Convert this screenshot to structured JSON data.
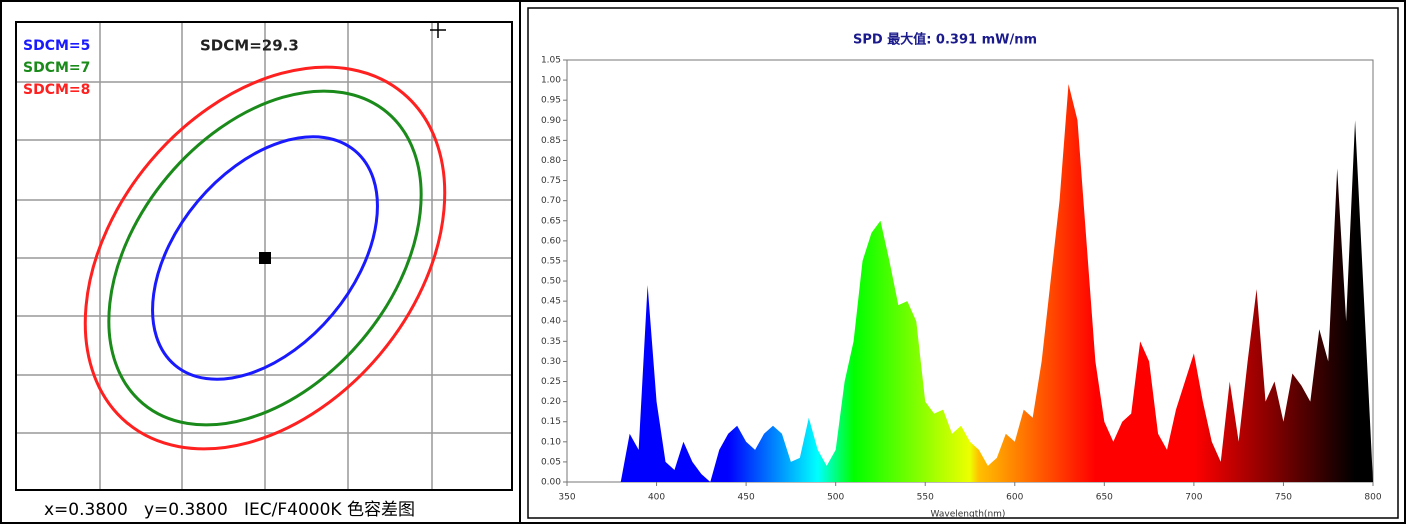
{
  "chart_data": [
    {
      "type": "ellipse",
      "annotation": "SDCM=29.3",
      "caption": "x=0.3800   y=0.3800   IEC/F4000K 色容差图",
      "series": [
        {
          "name": "SDCM=5",
          "color": "#1a1aff"
        },
        {
          "name": "SDCM=7",
          "color": "#1a8a1a"
        },
        {
          "name": "SDCM=8",
          "color": "#ff2020"
        }
      ]
    },
    {
      "type": "spectrum",
      "title": "SPD 最大值: 0.391 mW/nm",
      "xlabel": "Wavelength(nm)",
      "x": [
        350,
        355,
        360,
        365,
        370,
        375,
        380,
        385,
        390,
        395,
        400,
        405,
        410,
        415,
        420,
        425,
        430,
        435,
        440,
        445,
        450,
        455,
        460,
        465,
        470,
        475,
        480,
        485,
        490,
        495,
        500,
        505,
        510,
        515,
        520,
        525,
        530,
        535,
        540,
        545,
        550,
        555,
        560,
        565,
        570,
        575,
        580,
        585,
        590,
        595,
        600,
        605,
        610,
        615,
        620,
        625,
        630,
        635,
        640,
        645,
        650,
        655,
        660,
        665,
        670,
        675,
        680,
        685,
        690,
        695,
        700,
        705,
        710,
        715,
        720,
        725,
        730,
        735,
        740,
        745,
        750,
        755,
        760,
        765,
        770,
        775,
        780,
        785,
        790,
        795,
        800
      ],
      "values": [
        0,
        0,
        0,
        0,
        0,
        0,
        0,
        0.12,
        0.08,
        0.49,
        0.2,
        0.05,
        0.03,
        0.1,
        0.05,
        0.02,
        0,
        0.08,
        0.12,
        0.14,
        0.1,
        0.08,
        0.12,
        0.14,
        0.12,
        0.05,
        0.06,
        0.16,
        0.08,
        0.04,
        0.08,
        0.25,
        0.35,
        0.55,
        0.62,
        0.65,
        0.55,
        0.44,
        0.45,
        0.4,
        0.2,
        0.17,
        0.18,
        0.12,
        0.14,
        0.1,
        0.08,
        0.04,
        0.06,
        0.12,
        0.1,
        0.18,
        0.16,
        0.3,
        0.5,
        0.7,
        0.99,
        0.9,
        0.6,
        0.3,
        0.15,
        0.1,
        0.15,
        0.17,
        0.35,
        0.3,
        0.12,
        0.08,
        0.18,
        0.25,
        0.32,
        0.2,
        0.1,
        0.05,
        0.25,
        0.1,
        0.3,
        0.48,
        0.2,
        0.25,
        0.15,
        0.27,
        0.24,
        0.2,
        0.38,
        0.3,
        0.78,
        0.4,
        0.9,
        0.45,
        0
      ],
      "xlim": [
        350,
        800
      ],
      "ylim": [
        0,
        1.05
      ],
      "xticks": [
        350,
        400,
        450,
        500,
        550,
        600,
        650,
        700,
        750,
        800
      ],
      "yticks": [
        {
          "value": 0,
          "label": "0.00"
        },
        {
          "value": 0.05,
          "label": "0.05"
        },
        {
          "value": 0.1,
          "label": "0.10"
        },
        {
          "value": 0.15,
          "label": "0.15"
        },
        {
          "value": 0.2,
          "label": "0.20"
        },
        {
          "value": 0.25,
          "label": "0.25"
        },
        {
          "value": 0.3,
          "label": "0.30"
        },
        {
          "value": 0.35,
          "label": "0.35"
        },
        {
          "value": 0.4,
          "label": "0.40"
        },
        {
          "value": 0.45,
          "label": "0.45"
        },
        {
          "value": 0.5,
          "label": "0.50"
        },
        {
          "value": 0.55,
          "label": "0.55"
        },
        {
          "value": 0.6,
          "label": "0.60"
        },
        {
          "value": 0.65,
          "label": "0.65"
        },
        {
          "value": 0.7,
          "label": "0.70"
        },
        {
          "value": 0.75,
          "label": "0.75"
        },
        {
          "value": 0.8,
          "label": "0.80"
        },
        {
          "value": 0.85,
          "label": "0.85"
        },
        {
          "value": 0.9,
          "label": "0.90"
        },
        {
          "value": 0.95,
          "label": "0.95"
        },
        {
          "value": 1,
          "label": "1.00"
        },
        {
          "value": 1.05,
          "label": "1.05"
        }
      ],
      "grid": false
    }
  ]
}
